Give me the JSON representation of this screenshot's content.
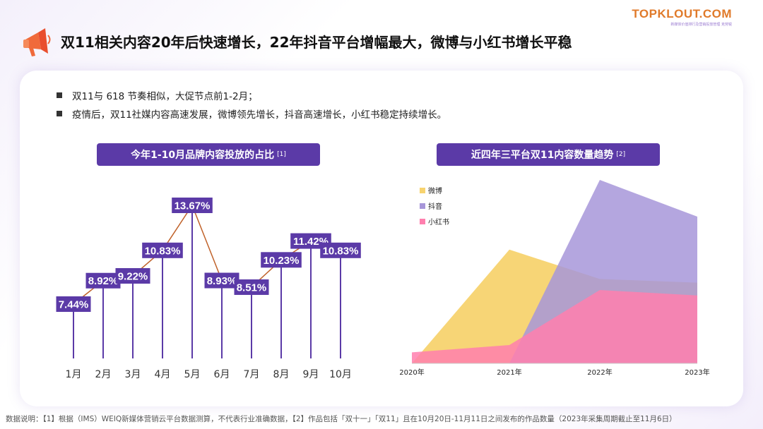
{
  "header": {
    "title": "双11相关内容20年后快速增长，22年抖音平台增幅最大，微博与小红书增长平稳",
    "brand_name": "TOPKLOUT.COM",
    "brand_sub": "新媒体价值排行及营销投放管理  克劳锐"
  },
  "bullets": [
    "双11与 618 节奏相似，大促节点前1-2月；",
    "疫情后，双11社媒内容高速发展，微博领先增长，抖音高速增长，小红书稳定持续增长。"
  ],
  "left_chart": {
    "title": "今年1-10月品牌内容投放的占比",
    "ref": "[1]"
  },
  "right_chart": {
    "title": "近四年三平台双11内容数量趋势",
    "ref": "[2]"
  },
  "footer": "数据说明：【1】根据（IMS）WEIQ新媒体营销云平台数据测算，不代表行业准确数据，【2】作品包括「双十一」「双11」且在10月20日-11月11日之间发布的作品数量（2023年采集周期截止至11月6日）",
  "colors": {
    "accent": "#5b3aa7",
    "line": "#c0622a",
    "weibo": "#f7d36f",
    "douyin": "#a796d9",
    "xhs": "#ff7fae"
  },
  "chart_data": [
    {
      "type": "line",
      "categories": [
        "1月",
        "2月",
        "3月",
        "4月",
        "5月",
        "6月",
        "7月",
        "8月",
        "9月",
        "10月"
      ],
      "values": [
        7.44,
        8.92,
        9.22,
        10.83,
        13.67,
        8.93,
        8.51,
        10.23,
        11.42,
        10.83
      ],
      "labels": [
        "7.44%",
        "8.92%",
        "9.22%",
        "10.83%",
        "13.67%",
        "8.93%",
        "8.51%",
        "10.23%",
        "11.42%",
        "10.83%"
      ]
    },
    {
      "type": "area",
      "x": [
        "2020年",
        "2021年",
        "2022年",
        "2023年"
      ],
      "series": [
        {
          "name": "微博",
          "values": [
            0,
            62,
            46,
            44
          ]
        },
        {
          "name": "抖音",
          "values": [
            0,
            0,
            100,
            80
          ]
        },
        {
          "name": "小红书",
          "values": [
            6,
            10,
            40,
            37
          ]
        }
      ],
      "ylim": [
        0,
        100
      ],
      "legend": "top-left"
    }
  ]
}
